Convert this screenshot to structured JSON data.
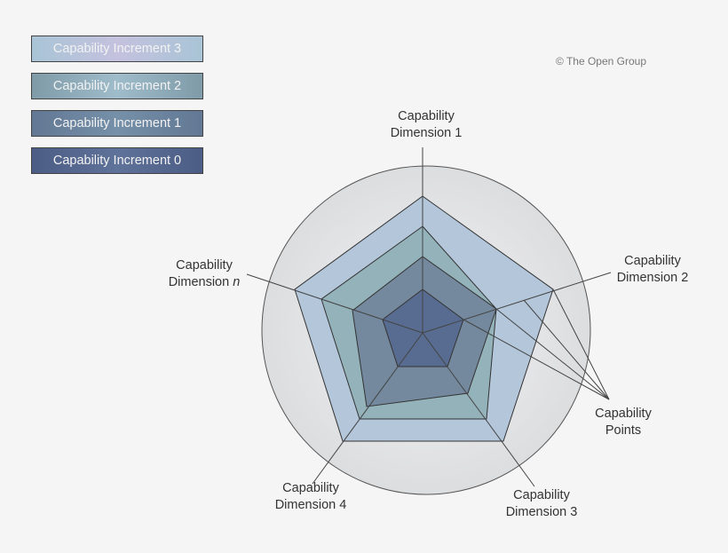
{
  "legend": [
    {
      "label": "Capability Increment 3",
      "color": "#a9c4d6"
    },
    {
      "label": "Capability Increment 2",
      "color": "#7f9ba8"
    },
    {
      "label": "Capability Increment 1",
      "color": "#677d98"
    },
    {
      "label": "Capability Increment 0",
      "color": "#4f6188"
    }
  ],
  "copyright": "© The Open Group",
  "labels": {
    "dim1": [
      "Capability",
      "Dimension 1"
    ],
    "dim2": [
      "Capability",
      "Dimension 2"
    ],
    "dim3": [
      "Capability",
      "Dimension 3"
    ],
    "dim4": [
      "Capability",
      "Dimension 4"
    ],
    "dimn": [
      "Capability",
      "Dimension",
      "n"
    ],
    "points": [
      "Capability",
      "Points"
    ]
  },
  "colors": {
    "increment3": "#b3c6da",
    "increment2": "#8fa9b4",
    "increment1": "#72869c",
    "increment0": "#566a90",
    "circle": "#e2e3e5"
  }
}
